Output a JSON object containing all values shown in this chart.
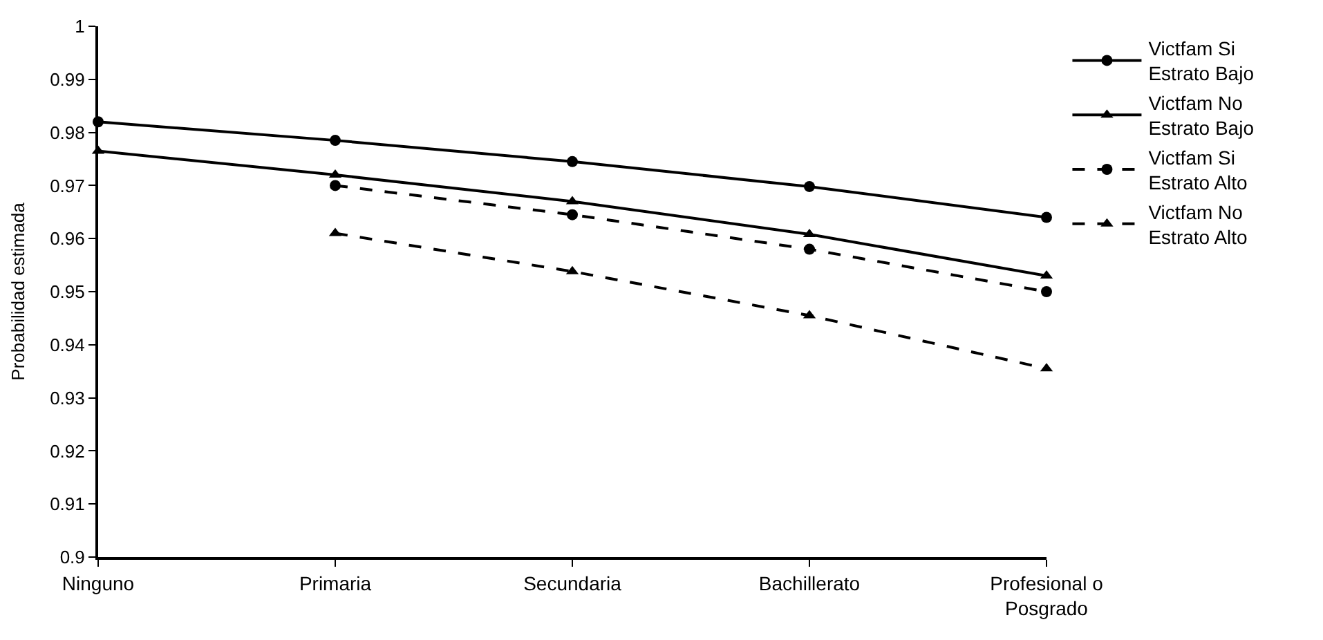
{
  "chart_data": {
    "type": "line",
    "ylabel": "Probabilidad estimada",
    "categories": [
      "Ninguno",
      "Primaria",
      "Secundaria",
      "Bachillerato",
      "Profesional o\nPosgrado"
    ],
    "series": [
      {
        "name": "Victfam Si\nEstrato Bajo",
        "color": "#000000",
        "marker": "circle",
        "line_style": "solid",
        "values": [
          0.982,
          0.9785,
          0.9745,
          0.9698,
          0.964
        ]
      },
      {
        "name": "Victfam No\nEstrato Bajo",
        "color": "#000000",
        "marker": "triangle",
        "line_style": "solid",
        "values": [
          0.9765,
          0.972,
          0.967,
          0.9608,
          0.953
        ]
      },
      {
        "name": "Victfam Si\nEstrato Alto",
        "color": "#000000",
        "marker": "circle",
        "line_style": "dashed",
        "values": [
          null,
          0.97,
          0.9645,
          0.958,
          0.95
        ]
      },
      {
        "name": "Victfam No\nEstrato Alto",
        "color": "#000000",
        "marker": "triangle",
        "line_style": "dashed",
        "values": [
          null,
          0.961,
          0.9538,
          0.9455,
          0.9355
        ]
      }
    ],
    "ylim": [
      0.9,
      1
    ],
    "yticks": [
      0.9,
      0.91,
      0.92,
      0.93,
      0.94,
      0.95,
      0.96,
      0.97,
      0.98,
      0.99,
      1
    ],
    "legend": "right"
  }
}
